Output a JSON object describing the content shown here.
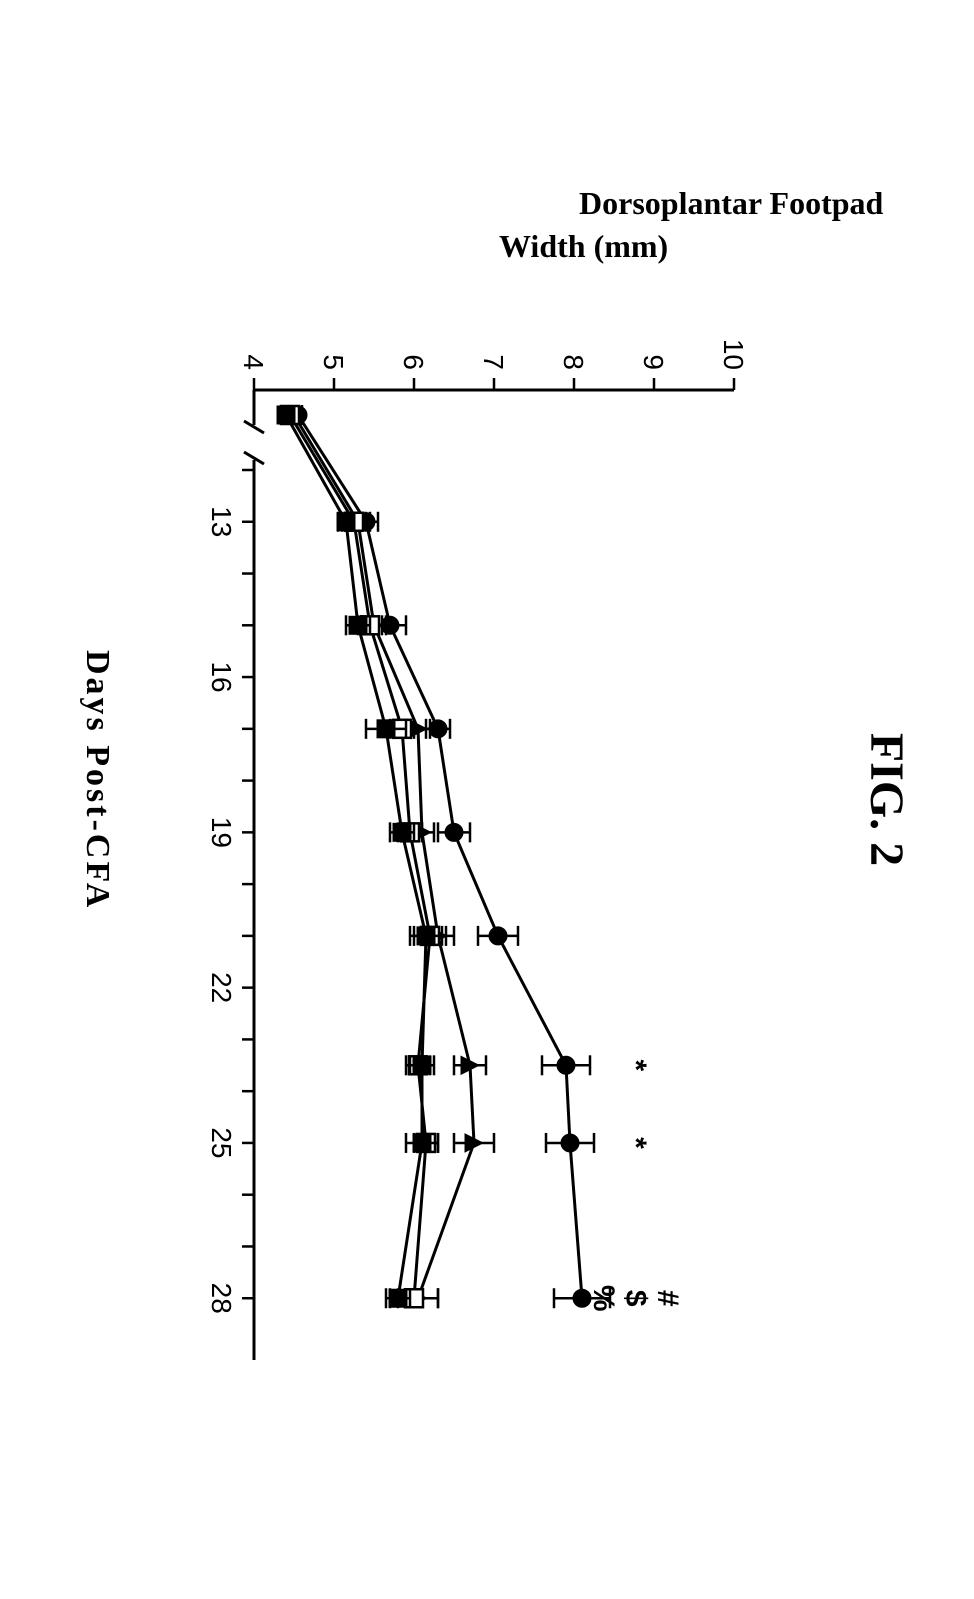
{
  "title": "FIG. 2",
  "chart": {
    "type": "line-errorbar",
    "background_color": "#ffffff",
    "line_color": "#000000",
    "axis_color": "#000000",
    "xlabel": "Days Post-CFA",
    "ylabel_line1": "Dorsoplantar Footpad",
    "ylabel_line2": "Width (mm)",
    "label_fontsize": 32,
    "title_fontsize": 48,
    "tick_fontsize": 28,
    "xlim": [
      0,
      29
    ],
    "ylim": [
      4,
      10
    ],
    "x_ticks_major": [
      13,
      16,
      19,
      22,
      25,
      28
    ],
    "x_ticks_all": [
      12,
      13,
      14,
      15,
      16,
      17,
      18,
      19,
      20,
      21,
      22,
      23,
      24,
      25,
      26,
      27,
      28
    ],
    "y_ticks": [
      4,
      5,
      6,
      7,
      8,
      9,
      10
    ],
    "x_break_at": 1,
    "x_series_points": [
      0,
      13,
      15,
      17,
      19,
      21,
      23.5,
      25,
      28
    ],
    "series": [
      {
        "name": "s1-filled-circle",
        "marker": "circle",
        "fill": true,
        "y": [
          4.55,
          5.4,
          5.7,
          6.3,
          6.5,
          7.05,
          7.9,
          7.95,
          8.1
        ],
        "err": [
          0.05,
          0.15,
          0.2,
          0.15,
          0.2,
          0.25,
          0.3,
          0.3,
          0.35
        ]
      },
      {
        "name": "s2-filled-triangle",
        "marker": "triangle",
        "fill": true,
        "y": [
          4.5,
          5.3,
          5.5,
          6.05,
          6.1,
          6.3,
          6.7,
          6.75,
          6.05
        ],
        "err": [
          0.05,
          0.15,
          0.15,
          0.15,
          0.15,
          0.2,
          0.2,
          0.25,
          0.25
        ]
      },
      {
        "name": "s3-open-square",
        "marker": "square",
        "fill": false,
        "y": [
          4.45,
          5.25,
          5.45,
          5.85,
          5.95,
          6.2,
          6.05,
          6.15,
          6.0
        ],
        "err": [
          0.05,
          0.15,
          0.15,
          0.15,
          0.15,
          0.2,
          0.15,
          0.15,
          0.3
        ]
      },
      {
        "name": "s4-filled-square",
        "marker": "square",
        "fill": true,
        "y": [
          4.4,
          5.15,
          5.3,
          5.65,
          5.85,
          6.15,
          6.1,
          6.1,
          5.8
        ],
        "err": [
          0.05,
          0.1,
          0.15,
          0.25,
          0.15,
          0.2,
          0.15,
          0.2,
          0.15
        ]
      }
    ],
    "significance": [
      {
        "x": 23.5,
        "label": "*"
      },
      {
        "x": 25,
        "label": "*"
      }
    ],
    "significance_at_28": [
      "#",
      "$",
      "%"
    ],
    "marker_size": 9,
    "errorbar_cap": 10
  }
}
